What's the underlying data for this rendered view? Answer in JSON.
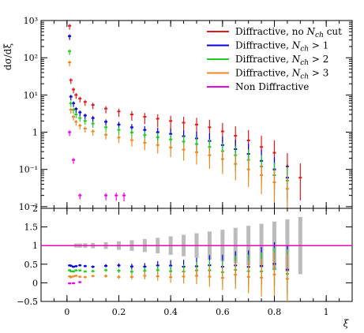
{
  "chart_data": [
    {
      "type": "scatter",
      "panel": "main",
      "ylabel": "dσ/dξ",
      "yscale": "log",
      "ylim": [
        0.009,
        1000
      ],
      "xlim": [
        -0.1,
        1.1
      ],
      "y_ticks": [
        {
          "value": 0.01,
          "label": "10⁻²"
        },
        {
          "value": 0.1,
          "label": "10⁻¹"
        },
        {
          "value": 1,
          "label": "1"
        },
        {
          "value": 10,
          "label": "10¹"
        },
        {
          "value": 100,
          "label": "10²"
        },
        {
          "value": 1000,
          "label": "10³"
        }
      ],
      "legend_position": "top-right",
      "series": [
        {
          "name": "Diffractive, no N_ch cut",
          "color": "#e31a1c",
          "points": [
            [
              0.01,
              720
            ],
            [
              0.015,
              25
            ],
            [
              0.025,
              14
            ],
            [
              0.035,
              10
            ],
            [
              0.05,
              8
            ],
            [
              0.07,
              6.5
            ],
            [
              0.1,
              5.4
            ],
            [
              0.15,
              4.3
            ],
            [
              0.2,
              3.6
            ],
            [
              0.25,
              3.0
            ],
            [
              0.3,
              2.6
            ],
            [
              0.35,
              2.3
            ],
            [
              0.4,
              2.0
            ],
            [
              0.45,
              1.8
            ],
            [
              0.5,
              1.6
            ],
            [
              0.55,
              1.35
            ],
            [
              0.6,
              1.05
            ],
            [
              0.65,
              0.8
            ],
            [
              0.7,
              0.6
            ],
            [
              0.75,
              0.4
            ],
            [
              0.8,
              0.28
            ],
            [
              0.85,
              0.12
            ],
            [
              0.9,
              0.06
            ]
          ]
        },
        {
          "name": "Diffractive, N_ch > 1",
          "color": "#0000dd",
          "points": [
            [
              0.01,
              380
            ],
            [
              0.015,
              9
            ],
            [
              0.025,
              6
            ],
            [
              0.035,
              4.2
            ],
            [
              0.05,
              3.4
            ],
            [
              0.07,
              2.8
            ],
            [
              0.1,
              2.4
            ],
            [
              0.15,
              1.9
            ],
            [
              0.2,
              1.6
            ],
            [
              0.25,
              1.35
            ],
            [
              0.3,
              1.15
            ],
            [
              0.35,
              1.0
            ],
            [
              0.4,
              0.9
            ],
            [
              0.45,
              0.78
            ],
            [
              0.5,
              0.68
            ],
            [
              0.55,
              0.58
            ],
            [
              0.6,
              0.45
            ],
            [
              0.65,
              0.35
            ],
            [
              0.7,
              0.26
            ],
            [
              0.75,
              0.17
            ],
            [
              0.8,
              0.1
            ],
            [
              0.85,
              0.06
            ]
          ]
        },
        {
          "name": "Diffractive, N_ch > 2",
          "color": "#22cc22",
          "points": [
            [
              0.01,
              150
            ],
            [
              0.015,
              6
            ],
            [
              0.025,
              4
            ],
            [
              0.035,
              3.0
            ],
            [
              0.05,
              2.4
            ],
            [
              0.07,
              2.0
            ],
            [
              0.1,
              1.7
            ],
            [
              0.15,
              1.35
            ],
            [
              0.2,
              1.15
            ],
            [
              0.25,
              0.98
            ],
            [
              0.3,
              0.84
            ],
            [
              0.35,
              0.73
            ],
            [
              0.4,
              0.64
            ],
            [
              0.45,
              0.56
            ],
            [
              0.5,
              0.48
            ],
            [
              0.55,
              0.4
            ],
            [
              0.6,
              0.31
            ],
            [
              0.65,
              0.24
            ],
            [
              0.7,
              0.18
            ],
            [
              0.75,
              0.12
            ],
            [
              0.8,
              0.07
            ],
            [
              0.85,
              0.05
            ]
          ]
        },
        {
          "name": "Diffractive, N_ch > 3",
          "color": "#ee8822",
          "points": [
            [
              0.01,
              75
            ],
            [
              0.015,
              4
            ],
            [
              0.025,
              2.6
            ],
            [
              0.035,
              1.9
            ],
            [
              0.05,
              1.5
            ],
            [
              0.07,
              1.25
            ],
            [
              0.1,
              1.05
            ],
            [
              0.15,
              0.85
            ],
            [
              0.2,
              0.72
            ],
            [
              0.25,
              0.61
            ],
            [
              0.3,
              0.52
            ],
            [
              0.35,
              0.45
            ],
            [
              0.4,
              0.39
            ],
            [
              0.45,
              0.34
            ],
            [
              0.5,
              0.29
            ],
            [
              0.55,
              0.24
            ],
            [
              0.6,
              0.19
            ],
            [
              0.65,
              0.14
            ],
            [
              0.7,
              0.1
            ],
            [
              0.75,
              0.07
            ],
            [
              0.8,
              0.045
            ],
            [
              0.85,
              0.03
            ]
          ]
        },
        {
          "name": "Non Diffractive",
          "color": "#ee00ee",
          "points": [
            [
              0.01,
              1.0
            ],
            [
              0.025,
              0.18
            ],
            [
              0.05,
              0.02
            ],
            [
              0.15,
              0.02
            ],
            [
              0.19,
              0.02
            ],
            [
              0.22,
              0.02
            ]
          ]
        }
      ]
    },
    {
      "type": "scatter",
      "panel": "ratio",
      "xlabel": "ξ",
      "xlim": [
        -0.1,
        1.1
      ],
      "ylim": [
        -0.5,
        2
      ],
      "x_ticks": [
        {
          "value": 0,
          "label": "0"
        },
        {
          "value": 0.2,
          "label": "0.2"
        },
        {
          "value": 0.4,
          "label": "0.4"
        },
        {
          "value": 0.6,
          "label": "0.6"
        },
        {
          "value": 0.8,
          "label": "0.8"
        },
        {
          "value": 1,
          "label": "1"
        }
      ],
      "y_ticks": [
        {
          "value": -0.5,
          "label": "−0.5"
        },
        {
          "value": 0,
          "label": "0"
        },
        {
          "value": 0.5,
          "label": "0.5"
        },
        {
          "value": 1,
          "label": "1"
        },
        {
          "value": 1.5,
          "label": "1.5"
        },
        {
          "value": 2,
          "label": "2"
        }
      ],
      "reference_line": 1,
      "series": [
        {
          "name": "Diffractive, no N_ch cut",
          "color": "#e31a1c",
          "values": 1.0
        },
        {
          "name": "Diffractive, N_ch > 1",
          "color": "#0000dd",
          "values": 0.45
        },
        {
          "name": "Diffractive, N_ch > 2",
          "color": "#22cc22",
          "values": 0.32
        },
        {
          "name": "Diffractive, N_ch > 3",
          "color": "#ee8822",
          "values": 0.17
        },
        {
          "name": "Non Diffractive",
          "color": "#ee00ee",
          "values": 0.0
        }
      ]
    }
  ],
  "legend": [
    {
      "prefix": "Diffractive, ",
      "text": "no N",
      "sub": "ch",
      "suffix": " cut",
      "color": "#e31a1c"
    },
    {
      "prefix": "Diffractive, ",
      "text": "N",
      "sub": "ch",
      "suffix": " > 1",
      "color": "#0000dd"
    },
    {
      "prefix": "Diffractive, ",
      "text": "N",
      "sub": "ch",
      "suffix": " > 2",
      "color": "#22cc22"
    },
    {
      "prefix": "Diffractive, ",
      "text": "N",
      "sub": "ch",
      "suffix": " > 3",
      "color": "#ee8822"
    },
    {
      "prefix": "Non Diffractive",
      "text": "",
      "sub": "",
      "suffix": "",
      "color": "#ee00ee"
    }
  ],
  "colors": {
    "band": "#bbbbbb",
    "axis": "#000000"
  }
}
